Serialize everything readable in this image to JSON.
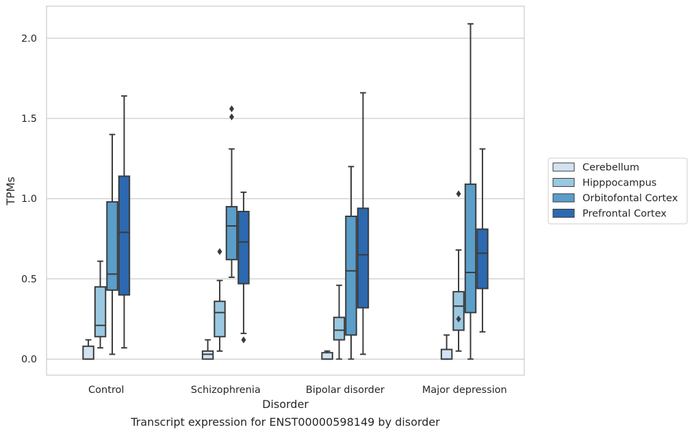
{
  "chart_data": {
    "type": "boxplot",
    "title": "",
    "caption": "Transcript expression for ENST00000598149 by disorder",
    "xlabel": "Disorder",
    "ylabel": "TPMs",
    "ylim": [
      -0.1,
      2.2
    ],
    "yticks": [
      "0.0",
      "0.5",
      "1.0",
      "1.5",
      "2.0"
    ],
    "grid": "horizontal",
    "legend_position": "right",
    "categories": [
      "Control",
      "Schizophrenia",
      "Bipolar disorder",
      "Major depression"
    ],
    "series": [
      {
        "name": "Cerebellum",
        "color": "#d1e2f2",
        "boxes": [
          {
            "whislo": 0.0,
            "q1": 0.0,
            "med": 0.0,
            "q3": 0.08,
            "whishi": 0.12,
            "fliers": []
          },
          {
            "whislo": 0.0,
            "q1": 0.0,
            "med": 0.03,
            "q3": 0.05,
            "whishi": 0.12,
            "fliers": []
          },
          {
            "whislo": 0.0,
            "q1": 0.0,
            "med": 0.0,
            "q3": 0.04,
            "whishi": 0.05,
            "fliers": []
          },
          {
            "whislo": 0.0,
            "q1": 0.0,
            "med": 0.0,
            "q3": 0.06,
            "whishi": 0.15,
            "fliers": []
          }
        ]
      },
      {
        "name": "Hipppocampus",
        "color": "#9ac8e0",
        "boxes": [
          {
            "whislo": 0.07,
            "q1": 0.14,
            "med": 0.21,
            "q3": 0.45,
            "whishi": 0.61,
            "fliers": []
          },
          {
            "whislo": 0.05,
            "q1": 0.14,
            "med": 0.29,
            "q3": 0.36,
            "whishi": 0.49,
            "fliers": [
              0.67
            ]
          },
          {
            "whislo": 0.0,
            "q1": 0.12,
            "med": 0.18,
            "q3": 0.26,
            "whishi": 0.46,
            "fliers": []
          },
          {
            "whislo": 0.05,
            "q1": 0.18,
            "med": 0.33,
            "q3": 0.42,
            "whishi": 0.68,
            "fliers": [
              0.25,
              1.03
            ]
          }
        ]
      },
      {
        "name": "Orbitofontal Cortex",
        "color": "#5a9ec9",
        "boxes": [
          {
            "whislo": 0.03,
            "q1": 0.43,
            "med": 0.53,
            "q3": 0.98,
            "whishi": 1.4,
            "fliers": []
          },
          {
            "whislo": 0.51,
            "q1": 0.62,
            "med": 0.83,
            "q3": 0.95,
            "whishi": 1.31,
            "fliers": [
              1.51,
              1.56
            ]
          },
          {
            "whislo": 0.0,
            "q1": 0.15,
            "med": 0.55,
            "q3": 0.89,
            "whishi": 1.2,
            "fliers": []
          },
          {
            "whislo": 0.0,
            "q1": 0.29,
            "med": 0.54,
            "q3": 1.09,
            "whishi": 2.09,
            "fliers": []
          }
        ]
      },
      {
        "name": "Prefrontal Cortex",
        "color": "#2c69b0",
        "boxes": [
          {
            "whislo": 0.07,
            "q1": 0.4,
            "med": 0.79,
            "q3": 1.14,
            "whishi": 1.64,
            "fliers": []
          },
          {
            "whislo": 0.16,
            "q1": 0.47,
            "med": 0.73,
            "q3": 0.92,
            "whishi": 1.04,
            "fliers": [
              0.12
            ]
          },
          {
            "whislo": 0.03,
            "q1": 0.32,
            "med": 0.65,
            "q3": 0.94,
            "whishi": 1.66,
            "fliers": []
          },
          {
            "whislo": 0.17,
            "q1": 0.44,
            "med": 0.66,
            "q3": 0.81,
            "whishi": 1.31,
            "fliers": []
          }
        ]
      }
    ]
  }
}
